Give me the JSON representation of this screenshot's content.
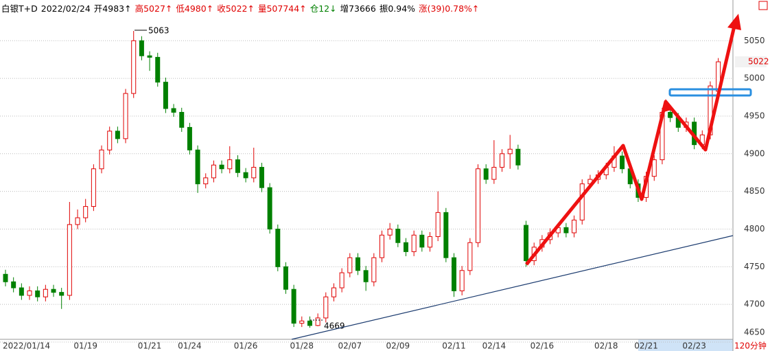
{
  "chart_data": {
    "type": "candlestick",
    "header": [
      {
        "text": "白银T+D",
        "color": "#000000"
      },
      {
        "text": "2022/02/24",
        "color": "#000000"
      },
      {
        "text": "开4983↑",
        "color": "#000000"
      },
      {
        "text": "高5027↑",
        "color": "#e00000"
      },
      {
        "text": "低4980↑",
        "color": "#e00000"
      },
      {
        "text": "收5022↑",
        "color": "#e00000"
      },
      {
        "text": "量507744↑",
        "color": "#e00000"
      },
      {
        "text": "仓12↓",
        "color": "#008000"
      },
      {
        "text": "增73666",
        "color": "#000000"
      },
      {
        "text": "振0.94%",
        "color": "#000000"
      },
      {
        "text": "涨(39)0.78%↑",
        "color": "#e00000"
      }
    ],
    "categories": [
      "2022/01/14",
      null,
      null,
      null,
      null,
      null,
      null,
      null,
      null,
      null,
      "01/19",
      null,
      null,
      null,
      null,
      null,
      null,
      null,
      "01/21",
      null,
      null,
      null,
      null,
      "01/24",
      null,
      null,
      null,
      null,
      null,
      null,
      "01/26",
      null,
      null,
      null,
      null,
      null,
      null,
      "01/28",
      null,
      null,
      null,
      null,
      null,
      "02/07",
      null,
      null,
      null,
      null,
      null,
      "02/09",
      null,
      null,
      null,
      null,
      null,
      null,
      "02/11",
      null,
      null,
      null,
      null,
      "02/14",
      null,
      null,
      null,
      null,
      null,
      "02/16",
      null,
      null,
      null,
      null,
      null,
      null,
      null,
      "02/18",
      null,
      null,
      null,
      null,
      "02/21",
      null,
      null,
      null,
      null,
      null,
      "02/23",
      null,
      null,
      null
    ],
    "ohlc": [
      [
        4740,
        4746,
        4724,
        4730
      ],
      [
        4730,
        4736,
        4716,
        4722
      ],
      [
        4722,
        4728,
        4706,
        4712
      ],
      [
        4712,
        4724,
        4706,
        4718
      ],
      [
        4718,
        4724,
        4704,
        4710
      ],
      [
        4710,
        4726,
        4704,
        4720
      ],
      [
        4720,
        4726,
        4710,
        4716
      ],
      [
        4716,
        4722,
        4694,
        4712
      ],
      [
        4712,
        4836,
        4706,
        4806
      ],
      [
        4806,
        4826,
        4800,
        4815
      ],
      [
        4815,
        4840,
        4809,
        4830
      ],
      [
        4830,
        4886,
        4824,
        4880
      ],
      [
        4880,
        4911,
        4874,
        4905
      ],
      [
        4905,
        4936,
        4899,
        4930
      ],
      [
        4930,
        4936,
        4914,
        4920
      ],
      [
        4920,
        4986,
        4914,
        4980
      ],
      [
        4980,
        5063,
        4974,
        5050
      ],
      [
        5050,
        5056,
        5024,
        5030
      ],
      [
        5030,
        5036,
        5010,
        5028
      ],
      [
        5028,
        5034,
        4989,
        4995
      ],
      [
        4995,
        5001,
        4954,
        4960
      ],
      [
        4960,
        4966,
        4949,
        4955
      ],
      [
        4955,
        4961,
        4929,
        4935
      ],
      [
        4935,
        4941,
        4899,
        4905
      ],
      [
        4905,
        4911,
        4848,
        4860
      ],
      [
        4860,
        4874,
        4854,
        4868
      ],
      [
        4868,
        4891,
        4862,
        4885
      ],
      [
        4885,
        4891,
        4874,
        4880
      ],
      [
        4880,
        4910,
        4874,
        4892
      ],
      [
        4892,
        4898,
        4869,
        4875
      ],
      [
        4875,
        4881,
        4862,
        4868
      ],
      [
        4868,
        4908,
        4862,
        4882
      ],
      [
        4882,
        4888,
        4849,
        4855
      ],
      [
        4855,
        4861,
        4794,
        4800
      ],
      [
        4800,
        4806,
        4744,
        4750
      ],
      [
        4750,
        4756,
        4714,
        4720
      ],
      [
        4720,
        4726,
        4670,
        4675
      ],
      [
        4675,
        4684,
        4670,
        4678
      ],
      [
        4678,
        4684,
        4669,
        4672
      ],
      [
        4672,
        4688,
        4671,
        4682
      ],
      [
        4682,
        4716,
        4676,
        4710
      ],
      [
        4710,
        4728,
        4704,
        4722
      ],
      [
        4722,
        4748,
        4716,
        4742
      ],
      [
        4742,
        4768,
        4736,
        4762
      ],
      [
        4762,
        4768,
        4739,
        4745
      ],
      [
        4745,
        4751,
        4718,
        4730
      ],
      [
        4730,
        4768,
        4724,
        4762
      ],
      [
        4762,
        4798,
        4756,
        4792
      ],
      [
        4792,
        4808,
        4786,
        4800
      ],
      [
        4800,
        4806,
        4776,
        4782
      ],
      [
        4782,
        4788,
        4764,
        4770
      ],
      [
        4770,
        4798,
        4764,
        4792
      ],
      [
        4792,
        4798,
        4770,
        4776
      ],
      [
        4776,
        4796,
        4770,
        4790
      ],
      [
        4790,
        4850,
        4784,
        4822
      ],
      [
        4822,
        4828,
        4756,
        4762
      ],
      [
        4762,
        4768,
        4710,
        4718
      ],
      [
        4718,
        4751,
        4712,
        4745
      ],
      [
        4745,
        4788,
        4739,
        4782
      ],
      [
        4782,
        4886,
        4776,
        4880
      ],
      [
        4880,
        4886,
        4860,
        4866
      ],
      [
        4866,
        4918,
        4860,
        4882
      ],
      [
        4882,
        4906,
        4876,
        4900
      ],
      [
        4900,
        4925,
        4880,
        4906
      ],
      [
        4906,
        4912,
        4879,
        4885
      ],
      [
        4805,
        4811,
        4750,
        4758
      ],
      [
        4758,
        4782,
        4752,
        4776
      ],
      [
        4776,
        4792,
        4770,
        4786
      ],
      [
        4786,
        4801,
        4780,
        4795
      ],
      [
        4795,
        4808,
        4789,
        4802
      ],
      [
        4802,
        4808,
        4789,
        4795
      ],
      [
        4795,
        4818,
        4789,
        4812
      ],
      [
        4812,
        4866,
        4806,
        4860
      ],
      [
        4860,
        4872,
        4854,
        4866
      ],
      [
        4866,
        4878,
        4860,
        4872
      ],
      [
        4872,
        4888,
        4866,
        4882
      ],
      [
        4882,
        4910,
        4876,
        4897
      ],
      [
        4897,
        4903,
        4874,
        4880
      ],
      [
        4880,
        4886,
        4854,
        4860
      ],
      [
        4860,
        4866,
        4836,
        4842
      ],
      [
        4842,
        4876,
        4836,
        4870
      ],
      [
        4870,
        4898,
        4864,
        4892
      ],
      [
        4892,
        4961,
        4886,
        4955
      ],
      [
        4955,
        4961,
        4942,
        4948
      ],
      [
        4948,
        4954,
        4929,
        4935
      ],
      [
        4935,
        4948,
        4929,
        4942
      ],
      [
        4942,
        4948,
        4906,
        4912
      ],
      [
        4912,
        4931,
        4906,
        4925
      ],
      [
        4925,
        4996,
        4919,
        4990
      ],
      [
        4983,
        5027,
        4980,
        5022
      ]
    ],
    "up_color": "#e00000",
    "down_color": "#008000",
    "ylim": [
      4650,
      5084
    ],
    "yticks": [
      4650,
      4700,
      4750,
      4800,
      4850,
      4900,
      4950,
      5000,
      5050
    ],
    "grid": true,
    "annotations": [
      "5063",
      "4669"
    ],
    "last_price_label": "5022",
    "period": "120分钟"
  }
}
